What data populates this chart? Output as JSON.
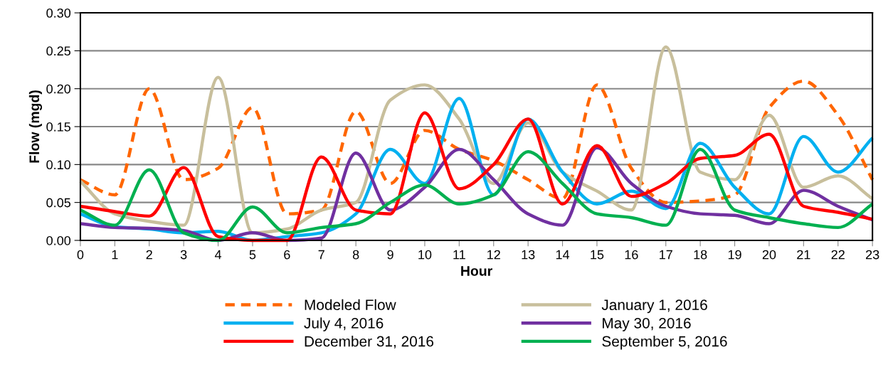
{
  "chart_data": {
    "type": "line",
    "xlabel": "Hour",
    "ylabel": "Flow (mgd)",
    "x": [
      0,
      1,
      2,
      3,
      4,
      5,
      6,
      7,
      8,
      9,
      10,
      11,
      12,
      13,
      14,
      15,
      16,
      17,
      18,
      19,
      20,
      21,
      22,
      23
    ],
    "xlim": [
      0,
      23
    ],
    "xticks": [
      0,
      1,
      2,
      3,
      4,
      5,
      6,
      7,
      8,
      9,
      10,
      11,
      12,
      13,
      14,
      15,
      16,
      17,
      18,
      19,
      20,
      21,
      22,
      23
    ],
    "ylim": [
      0,
      0.3
    ],
    "yticks": [
      {
        "value": 0,
        "label": "0.00"
      },
      {
        "value": 0.05,
        "label": "0.05"
      },
      {
        "value": 0.1,
        "label": "0.10"
      },
      {
        "value": 0.15,
        "label": "0.15"
      },
      {
        "value": 0.2,
        "label": "0.20"
      },
      {
        "value": 0.25,
        "label": "0.25"
      },
      {
        "value": 0.3,
        "label": "0.30"
      }
    ],
    "grid": "y",
    "legend": "bottom",
    "marker": "none",
    "series": [
      {
        "name": "Modeled Flow",
        "color": "#ff6600",
        "line_style": "dashed",
        "values": [
          0.08,
          0.06,
          0.2,
          0.08,
          0.095,
          0.175,
          0.035,
          0.04,
          0.17,
          0.075,
          0.145,
          0.12,
          0.105,
          0.08,
          0.055,
          0.205,
          0.095,
          0.05,
          0.052,
          0.06,
          0.175,
          0.21,
          0.165,
          0.08
        ]
      },
      {
        "name": "January 1, 2016",
        "color": "#c8bf9c",
        "line_style": "solid",
        "values": [
          0.078,
          0.035,
          0.025,
          0.02,
          0.215,
          0.01,
          0.015,
          0.04,
          0.05,
          0.185,
          0.205,
          0.16,
          0.075,
          0.155,
          0.09,
          0.065,
          0.04,
          0.255,
          0.09,
          0.08,
          0.165,
          0.07,
          0.085,
          0.055
        ]
      },
      {
        "name": "July 4, 2016",
        "color": "#00b0f0",
        "line_style": "solid",
        "values": [
          0.035,
          0.018,
          0.015,
          0.01,
          0.012,
          0.0,
          0.005,
          0.01,
          0.035,
          0.12,
          0.075,
          0.187,
          0.06,
          0.16,
          0.09,
          0.048,
          0.065,
          0.042,
          0.128,
          0.07,
          0.035,
          0.137,
          0.09,
          0.135
        ]
      },
      {
        "name": "May 30, 2016",
        "color": "#7030a0",
        "line_style": "solid",
        "values": [
          0.022,
          0.017,
          0.016,
          0.013,
          0.0,
          0.01,
          0.0,
          0.003,
          0.115,
          0.04,
          0.07,
          0.12,
          0.08,
          0.035,
          0.02,
          0.122,
          0.075,
          0.045,
          0.035,
          0.033,
          0.022,
          0.066,
          0.045,
          0.027
        ]
      },
      {
        "name": "December 31, 2016",
        "color": "#ff0000",
        "line_style": "solid",
        "values": [
          0.045,
          0.038,
          0.032,
          0.096,
          0.005,
          0.0,
          0.0,
          0.11,
          0.04,
          0.035,
          0.168,
          0.068,
          0.1,
          0.16,
          0.048,
          0.125,
          0.058,
          0.075,
          0.108,
          0.112,
          0.14,
          0.045,
          0.037,
          0.028
        ]
      },
      {
        "name": "September 5, 2016",
        "color": "#00b050",
        "line_style": "solid",
        "values": [
          0.04,
          0.02,
          0.093,
          0.01,
          0.0,
          0.044,
          0.01,
          0.017,
          0.022,
          0.05,
          0.073,
          0.048,
          0.06,
          0.117,
          0.075,
          0.035,
          0.03,
          0.02,
          0.12,
          0.04,
          0.03,
          0.022,
          0.017,
          0.048
        ]
      }
    ]
  }
}
